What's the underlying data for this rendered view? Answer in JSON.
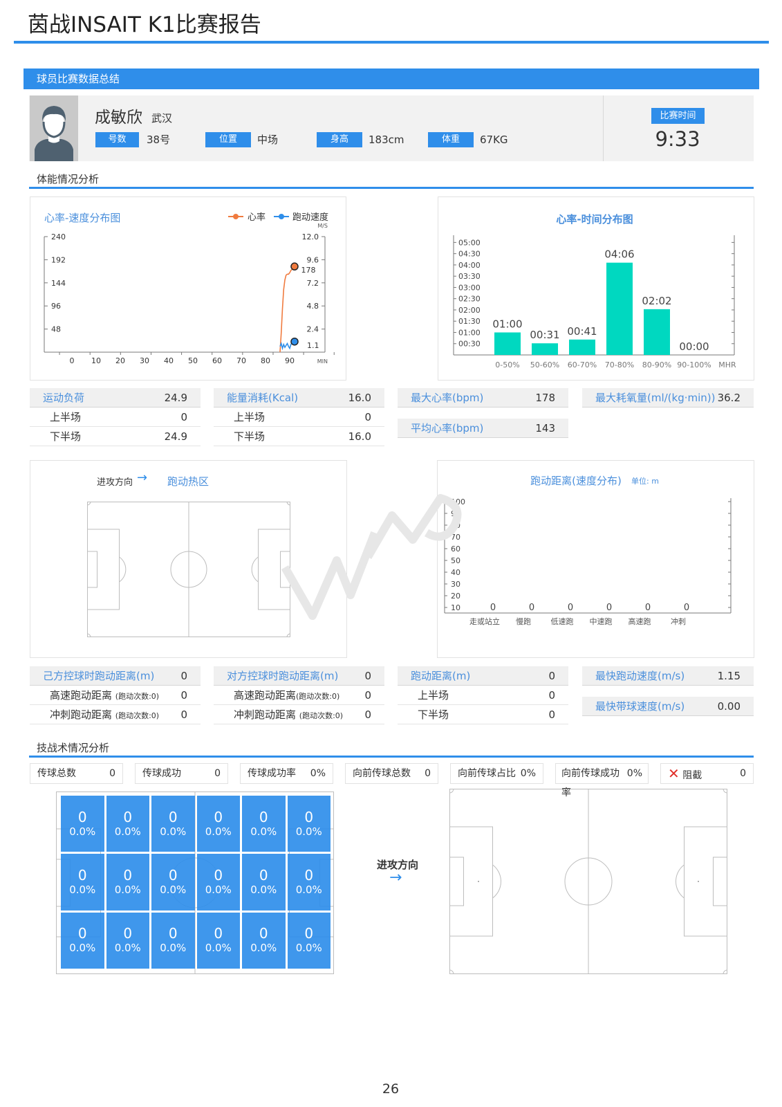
{
  "report_title": "茵战INSAIT K1比赛报告",
  "section_summary": "球员比赛数据总结",
  "player": {
    "name": "成敏欣",
    "city": "武汉",
    "number_label": "号数",
    "number": "38号",
    "position_label": "位置",
    "position": "中场",
    "height_label": "身高",
    "height": "183cm",
    "weight_label": "体重",
    "weight": "67KG",
    "time_label": "比赛时间",
    "time": "9:33"
  },
  "section_physical": "体能情况分析",
  "hr_speed_chart": {
    "title": "心率-速度分布图",
    "legend_hr": "心率",
    "legend_speed": "跑动速度",
    "unit_right": "M/S",
    "unit_x": "MIN",
    "y_left_ticks": [
      "240",
      "192",
      "144",
      "96",
      "48"
    ],
    "y_right_ticks": [
      "12.0",
      "9.6",
      "7.2",
      "4.8",
      "2.4"
    ],
    "x_ticks": [
      "0",
      "10",
      "20",
      "30",
      "40",
      "50",
      "60",
      "70",
      "80",
      "90"
    ],
    "hr_end_label": "178",
    "speed_end_label": "1.1",
    "colors": {
      "hr": "#f07b3f",
      "speed": "#2f8eea"
    }
  },
  "chart_data": [
    {
      "type": "line",
      "title": "心率-速度分布图",
      "xlabel": "MIN",
      "x_range": [
        0,
        92
      ],
      "series": [
        {
          "name": "心率",
          "axis": "left",
          "ylim": [
            0,
            240
          ],
          "x": [
            86,
            86.5,
            87,
            87.5,
            88,
            88.5,
            89,
            89.5,
            90,
            90.5,
            91,
            92
          ],
          "y": [
            0,
            40,
            90,
            130,
            150,
            160,
            162,
            162,
            165,
            170,
            172,
            178
          ]
        },
        {
          "name": "跑动速度",
          "axis": "right",
          "ylim": [
            0,
            12.0
          ],
          "x": [
            86,
            86.5,
            87,
            87.5,
            88,
            88.5,
            89,
            89.5,
            90,
            90.5,
            91,
            92
          ],
          "y": [
            0.6,
            0.9,
            0.4,
            0.8,
            0.5,
            0.7,
            0.9,
            0.6,
            0.4,
            0.8,
            1.0,
            1.1
          ]
        }
      ]
    },
    {
      "type": "bar",
      "title": "心率-时间分布图",
      "categories": [
        "0-50%",
        "50-60%",
        "60-70%",
        "70-80%",
        "80-90%",
        "90-100%"
      ],
      "values_seconds": [
        60,
        31,
        41,
        246,
        122,
        0
      ],
      "value_labels": [
        "01:00",
        "00:31",
        "00:41",
        "04:06",
        "02:02",
        "00:00"
      ],
      "y_ticks": [
        "05:00",
        "04:30",
        "04:00",
        "03:30",
        "03:00",
        "02:30",
        "02:00",
        "01:30",
        "01:00",
        "00:30"
      ],
      "ylim_seconds": [
        0,
        300
      ],
      "xunit": "MHR",
      "color": "#00d8c0"
    },
    {
      "type": "bar",
      "title": "跑动距离(速度分布)",
      "unit": "单位: m",
      "categories": [
        "走或站立",
        "慢跑",
        "低速跑",
        "中速跑",
        "高速跑",
        "冲刺"
      ],
      "values": [
        0,
        0,
        0,
        0,
        0,
        0
      ],
      "y_ticks": [
        "100",
        "90",
        "80",
        "70",
        "60",
        "50",
        "40",
        "30",
        "20",
        "10"
      ],
      "ylim": [
        0,
        100
      ]
    }
  ],
  "hr_time_chart": {
    "title": "心率-时间分布图",
    "xunit": "MHR"
  },
  "load_stats": [
    {
      "head": "运动负荷",
      "head_val": "24.9",
      "rows": [
        [
          "上半场",
          "0"
        ],
        [
          "下半场",
          "24.9"
        ]
      ]
    },
    {
      "head": "能量消耗(Kcal)",
      "head_val": "16.0",
      "rows": [
        [
          "上半场",
          "0"
        ],
        [
          "下半场",
          "16.0"
        ]
      ]
    }
  ],
  "hr_stats": {
    "max_hr_label": "最大心率(bpm)",
    "max_hr": "178",
    "avg_hr_label": "平均心率(bpm)",
    "avg_hr": "143",
    "vo2_label": "最大耗氧量(ml/(kg·min))",
    "vo2": "36.2"
  },
  "heatmap": {
    "direction_label": "进攻方向",
    "arrow": "→",
    "title": "跑动热区"
  },
  "distance_chart": {
    "title": "跑动距离(速度分布)",
    "unit": "单位: m"
  },
  "distance_stats": [
    {
      "head": "己方控球时跑动距离(m)",
      "head_val": "0",
      "rows": [
        [
          "高速跑动距离",
          "(跑动次数:0)",
          "0"
        ],
        [
          "冲刺跑动距离",
          "(跑动次数:0)",
          "0"
        ]
      ]
    },
    {
      "head": "对方控球时跑动距离(m)",
      "head_val": "0",
      "rows": [
        [
          "高速跑动距离",
          "(跑动次数:0)",
          "0"
        ],
        [
          "冲刺跑动距离",
          "(跑动次数:0)",
          "0"
        ]
      ]
    },
    {
      "head": "跑动距离(m)",
      "head_val": "0",
      "rows": [
        [
          "上半场",
          "",
          "0"
        ],
        [
          "下半场",
          "",
          "0"
        ]
      ]
    }
  ],
  "speed_stats": {
    "max_run_label": "最快跑动速度(m/s)",
    "max_run": "1.15",
    "max_ball_label": "最快带球速度(m/s)",
    "max_ball": "0.00"
  },
  "section_tactics": "技战术情况分析",
  "tactics": [
    {
      "label": "传球总数",
      "value": "0"
    },
    {
      "label": "传球成功",
      "value": "0"
    },
    {
      "label": "传球成功率",
      "value": "0%"
    },
    {
      "label": "向前传球总数",
      "value": "0"
    },
    {
      "label": "向前传球占比",
      "value": "0%"
    },
    {
      "label": "向前传球成功率",
      "value": "0%"
    },
    {
      "label": "阻截",
      "value": "0"
    }
  ],
  "zones": [
    [
      "0",
      "0.0%"
    ],
    [
      "0",
      "0.0%"
    ],
    [
      "0",
      "0.0%"
    ],
    [
      "0",
      "0.0%"
    ],
    [
      "0",
      "0.0%"
    ],
    [
      "0",
      "0.0%"
    ],
    [
      "0",
      "0.0%"
    ],
    [
      "0",
      "0.0%"
    ],
    [
      "0",
      "0.0%"
    ],
    [
      "0",
      "0.0%"
    ],
    [
      "0",
      "0.0%"
    ],
    [
      "0",
      "0.0%"
    ],
    [
      "0",
      "0.0%"
    ],
    [
      "0",
      "0.0%"
    ],
    [
      "0",
      "0.0%"
    ],
    [
      "0",
      "0.0%"
    ],
    [
      "0",
      "0.0%"
    ],
    [
      "0",
      "0.0%"
    ]
  ],
  "pass_direction": {
    "label": "进攻方向",
    "arrow": "→"
  },
  "page_number": "26"
}
